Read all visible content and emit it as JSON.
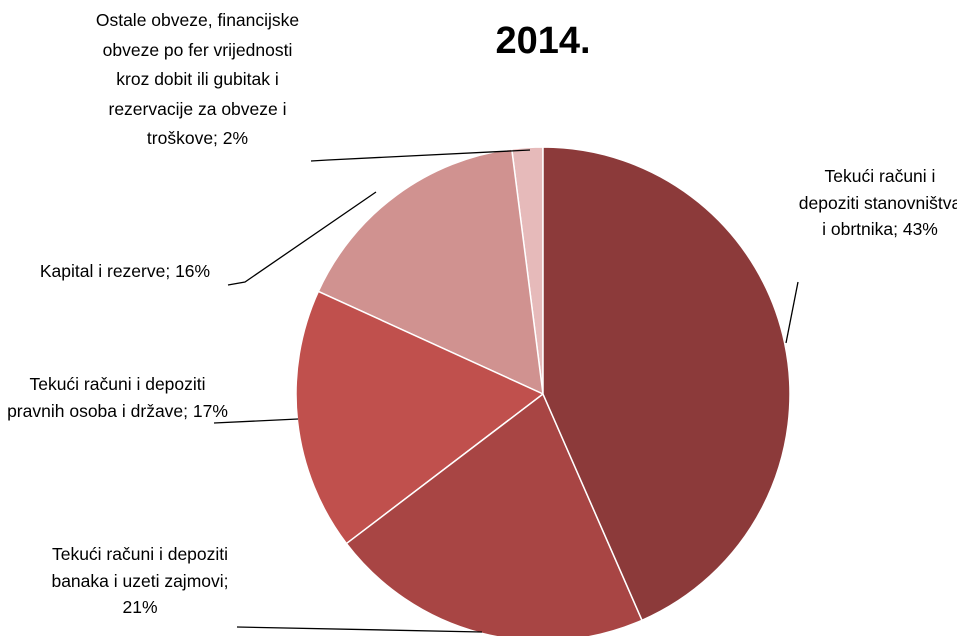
{
  "chart_data": {
    "type": "pie",
    "title": "2014.",
    "categories": [
      "Tekući računi i depoziti stanovništva i obrtnika; 43%",
      "Tekući računi i depoziti banaka i uzeti zajmovi; 21%",
      "Tekući računi i depoziti pravnih osoba i države; 17%",
      "Kapital i rezerve; 16%",
      "Ostale obveze, financijske obveze po fer vrijednosti kroz dobit ili gubitak i rezervacije za obveze i troškove; 2%"
    ],
    "values": [
      43,
      21,
      17,
      16,
      2
    ],
    "colors": [
      "#8c3a3a",
      "#a84544",
      "#c0504d",
      "#d09290",
      "#e6baba"
    ]
  }
}
